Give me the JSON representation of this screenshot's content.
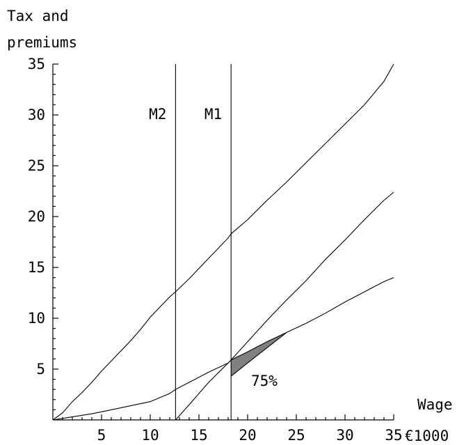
{
  "chart_data": {
    "type": "line",
    "ylabel_lines": [
      "Tax and",
      "premiums"
    ],
    "xlabel_lines": [
      "Wage",
      "€1000"
    ],
    "xlim": [
      0,
      35
    ],
    "ylim": [
      0,
      35
    ],
    "x_ticks": [
      5,
      10,
      15,
      20,
      25,
      30,
      35
    ],
    "y_ticks": [
      5,
      10,
      15,
      20,
      25,
      30,
      35
    ],
    "grid": false,
    "vertical_markers": [
      {
        "label": "M2",
        "x": 12.6
      },
      {
        "label": "M1",
        "x": 18.3
      }
    ],
    "series": [
      {
        "x": [
          0,
          1,
          2,
          3,
          4,
          5,
          6,
          7,
          8,
          9,
          10,
          11,
          12,
          12.6,
          14,
          16,
          18,
          18.3,
          20,
          22,
          24,
          26,
          28,
          30,
          32,
          34,
          35
        ],
        "values": [
          0,
          0.7,
          1.8,
          2.7,
          3.7,
          4.8,
          5.8,
          6.8,
          7.8,
          8.9,
          10.1,
          11.1,
          12.1,
          12.6,
          13.9,
          15.9,
          17.9,
          18.3,
          19.7,
          21.6,
          23.4,
          25.3,
          27.2,
          29.1,
          31.0,
          33.3,
          35.0
        ]
      },
      {
        "x": [
          12.6,
          14,
          16,
          18,
          18.3,
          20,
          22,
          24,
          26,
          28,
          30,
          32,
          34,
          35
        ],
        "values": [
          0,
          1.5,
          3.7,
          5.6,
          5.9,
          7.7,
          9.8,
          11.8,
          13.7,
          15.8,
          17.7,
          19.7,
          21.6,
          22.4
        ]
      },
      {
        "x": [
          0,
          2,
          4,
          6,
          8,
          10,
          12,
          12.6,
          14,
          16,
          18,
          18.3,
          20,
          22,
          24,
          26,
          28,
          30,
          32,
          34,
          35
        ],
        "values": [
          0,
          0.3,
          0.6,
          1.0,
          1.4,
          1.8,
          2.6,
          3.0,
          3.7,
          4.7,
          5.6,
          5.9,
          6.7,
          7.7,
          8.6,
          9.5,
          10.5,
          11.6,
          12.6,
          13.6,
          14.0
        ]
      },
      {
        "x": [
          18.3,
          20,
          22,
          24
        ],
        "values": [
          4.3,
          5.6,
          7.1,
          8.6
        ]
      }
    ],
    "shaded_region": {
      "label": "75%",
      "x_from": 18.3,
      "x_to": 24
    }
  }
}
